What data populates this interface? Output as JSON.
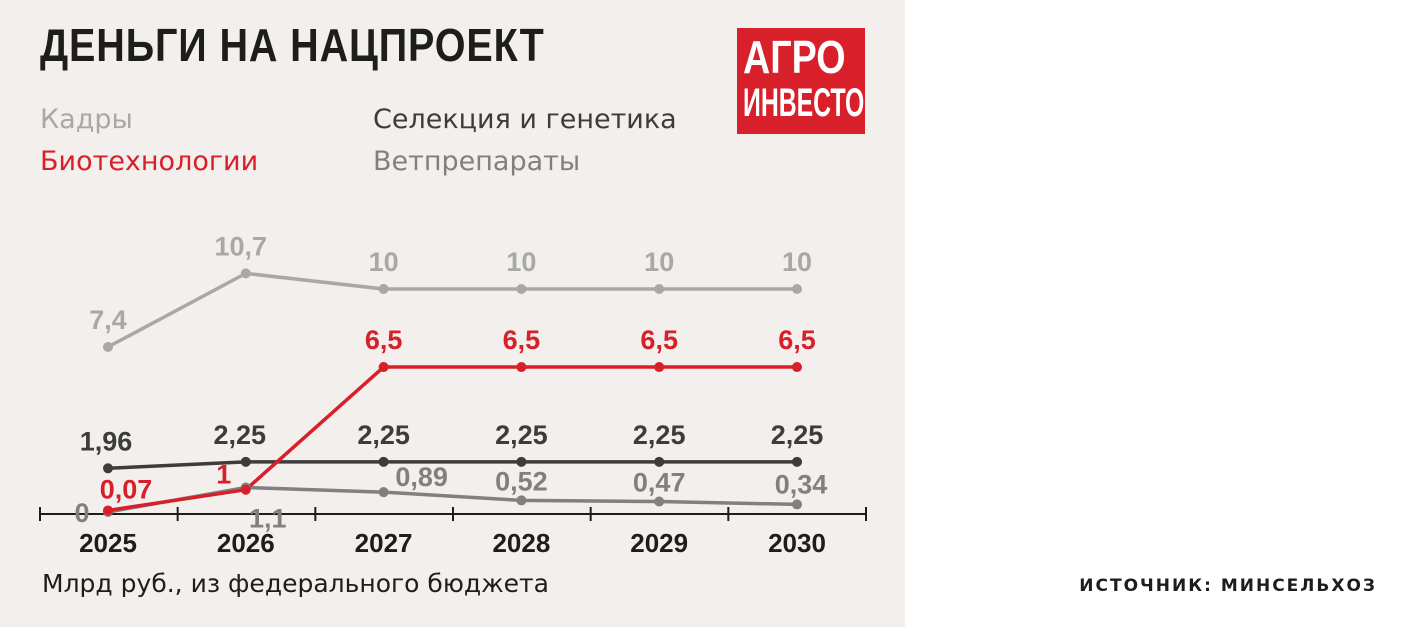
{
  "title": "ДЕНЬГИ НА НАЦПРОЕКТ",
  "logo": {
    "line1": "АГРО",
    "line2": "ИНВЕСТОР"
  },
  "footer": {
    "unit": "Млрд руб., из федерального бюджета",
    "source": "ИСТОЧНИК: МИНСЕЛЬХОЗ"
  },
  "chart_data": {
    "type": "line",
    "x": [
      "2025",
      "2026",
      "2027",
      "2028",
      "2029",
      "2030"
    ],
    "ylim": [
      0,
      11
    ],
    "grid": false,
    "legend_placement": "top-left",
    "series": [
      {
        "name": "Кадры",
        "color": "#a8a8a8",
        "values": [
          7.4,
          10.7,
          10,
          10,
          10,
          10
        ],
        "labels": [
          "7,4",
          "10,7",
          "10",
          "10",
          "10",
          "10"
        ]
      },
      {
        "name": "Селекция и генетика",
        "color": "#3c3c3c",
        "values": [
          1.96,
          2.25,
          2.25,
          2.25,
          2.25,
          2.25
        ],
        "labels": [
          "1,96",
          "2,25",
          "2,25",
          "2,25",
          "2,25",
          "2,25"
        ]
      },
      {
        "name": "Биотехнологии",
        "color": "#d7202a",
        "values": [
          0.07,
          1,
          6.5,
          6.5,
          6.5,
          6.5
        ],
        "labels": [
          "0,07",
          "1",
          "6,5",
          "6,5",
          "6,5",
          "6,5"
        ]
      },
      {
        "name": "Ветпрепараты",
        "color": "#808080",
        "values": [
          0,
          1.1,
          0.89,
          0.52,
          0.47,
          0.34
        ],
        "labels": [
          "0",
          "1,1",
          "0,89",
          "0,52",
          "0,47",
          "0,34"
        ]
      }
    ]
  }
}
